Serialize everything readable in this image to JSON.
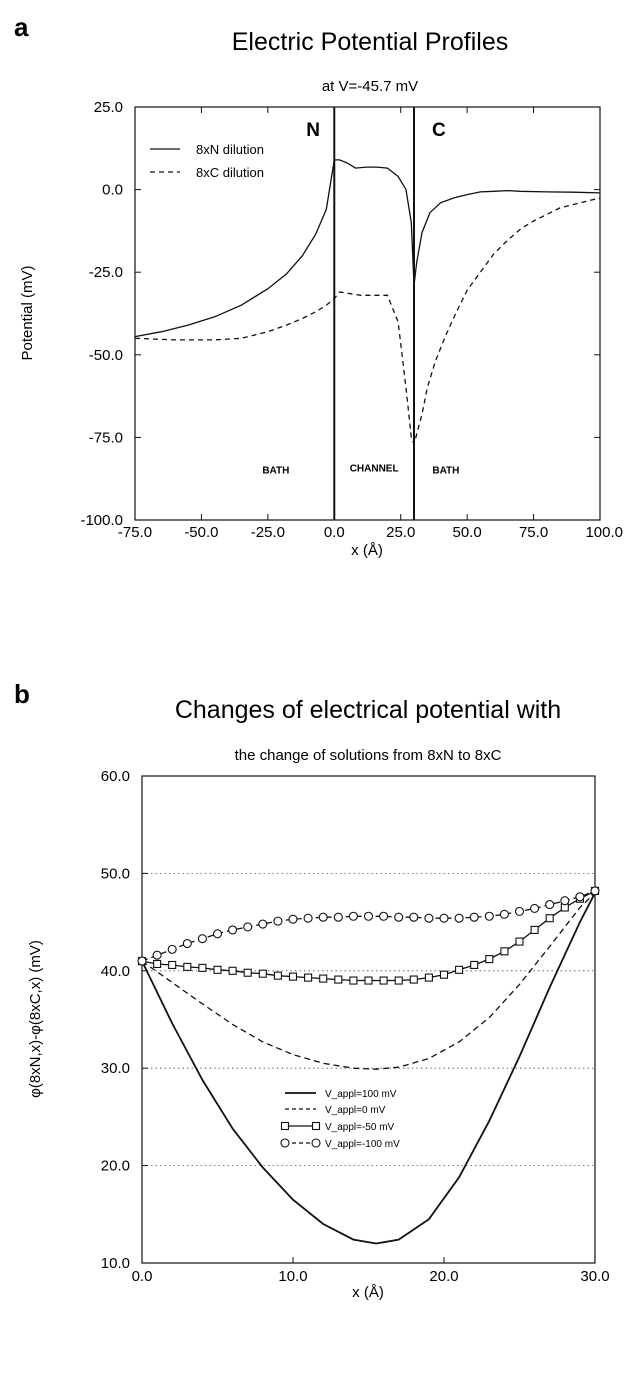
{
  "chart_data": [
    {
      "panel_label": "a",
      "type": "line",
      "title": "Electric Potential Profiles",
      "subtitle": "at V=-45.7 mV",
      "xlabel": "x (Å)",
      "ylabel": "Potential (mV)",
      "xlim": [
        -75,
        100
      ],
      "ylim": [
        -100,
        25
      ],
      "xticks": [
        "-75.0",
        "-50.0",
        "-25.0",
        "0.0",
        "25.0",
        "50.0",
        "75.0",
        "100.0"
      ],
      "yticks": [
        "25.0",
        "0.0",
        "-25.0",
        "-50.0",
        "-75.0",
        "-100.0"
      ],
      "legend_position": "top-left",
      "boundary_labels": [
        "N",
        "C"
      ],
      "region_labels": [
        "BATH",
        "CHANNEL",
        "BATH"
      ],
      "series": [
        {
          "name": "8xN dilution",
          "style": "solid",
          "x": [
            -75,
            -65,
            -55,
            -45,
            -35,
            -25,
            -18,
            -12,
            -7,
            -3,
            0,
            2,
            5,
            8,
            12,
            16,
            20,
            24,
            27,
            29,
            30,
            31,
            33,
            36,
            40,
            45,
            50,
            55,
            60,
            65,
            70,
            80,
            90,
            100
          ],
          "y": [
            -44.5,
            -43,
            -41,
            -38.5,
            -35,
            -30,
            -25.5,
            -20,
            -13.5,
            -6,
            9,
            9,
            8,
            6.5,
            6.8,
            6.8,
            6.5,
            4,
            0,
            -10,
            -29,
            -22,
            -13,
            -7,
            -4,
            -2.5,
            -1.5,
            -0.7,
            -0.5,
            -0.3,
            -0.5,
            -0.7,
            -0.8,
            -1
          ]
        },
        {
          "name": "8xC dilution",
          "style": "dashed",
          "x": [
            -75,
            -60,
            -45,
            -35,
            -25,
            -18,
            -12,
            -7,
            -3,
            0,
            2,
            6,
            10,
            16,
            20,
            24,
            27,
            29,
            30,
            31,
            33,
            35,
            38,
            42,
            46,
            50,
            55,
            60,
            65,
            70,
            75,
            80,
            85,
            90,
            95,
            100
          ],
          "y": [
            -45,
            -45.5,
            -45.5,
            -45,
            -43,
            -41,
            -39,
            -37,
            -35,
            -33,
            -31,
            -31.5,
            -32,
            -32,
            -32,
            -40,
            -60,
            -75,
            -77,
            -74,
            -68,
            -60,
            -52,
            -44,
            -37,
            -30.5,
            -25,
            -19.5,
            -15.5,
            -12,
            -9.5,
            -7.5,
            -5.5,
            -4.5,
            -3.5,
            -2.5
          ]
        }
      ]
    },
    {
      "panel_label": "b",
      "type": "line",
      "title": "Changes of electrical potential with",
      "subtitle": "the change of solutions from 8xN to 8xC",
      "xlabel": "x (Å)",
      "ylabel": "φ(8xN,x)-φ(8xC,x) (mV)",
      "xlim": [
        0,
        30
      ],
      "ylim": [
        10,
        60
      ],
      "xticks": [
        "0.0",
        "10.0",
        "20.0",
        "30.0"
      ],
      "yticks": [
        "60.0",
        "50.0",
        "40.0",
        "30.0",
        "20.0",
        "10.0"
      ],
      "grid": "horizontal dotted",
      "legend_position": "lower-center",
      "legend_labels": [
        "V_appl=100 mV",
        "V_appl=0 mV",
        "V_appl=-50 mV",
        "V_appl=-100 mV"
      ],
      "series": [
        {
          "name": "V_appl=100 mV",
          "style": "solid",
          "x": [
            0,
            2,
            4,
            6,
            8,
            10,
            12,
            14,
            15.5,
            17,
            19,
            21,
            23,
            25,
            27,
            29,
            30
          ],
          "y": [
            41,
            34.6,
            28.8,
            23.8,
            19.8,
            16.5,
            14,
            12.4,
            12,
            12.4,
            14.5,
            18.8,
            24.6,
            31.2,
            38.3,
            45,
            48
          ]
        },
        {
          "name": "V_appl=0 mV",
          "style": "dashed",
          "x": [
            0,
            2,
            4,
            6,
            8,
            10,
            12,
            14,
            15.5,
            17,
            19,
            21,
            23,
            25,
            27,
            29,
            30
          ],
          "y": [
            41,
            38.8,
            36.6,
            34.5,
            32.7,
            31.4,
            30.5,
            30,
            29.9,
            30.1,
            31,
            32.7,
            35.2,
            38.6,
            42.5,
            46.5,
            48
          ]
        },
        {
          "name": "V_appl=-50 mV",
          "style": "solid-square-markers",
          "x": [
            0,
            1,
            2,
            3,
            4,
            5,
            6,
            7,
            8,
            9,
            10,
            11,
            12,
            13,
            14,
            15,
            16,
            17,
            18,
            19,
            20,
            21,
            22,
            23,
            24,
            25,
            26,
            27,
            28,
            29,
            30
          ],
          "y": [
            41,
            40.7,
            40.6,
            40.4,
            40.3,
            40.1,
            40,
            39.8,
            39.7,
            39.5,
            39.4,
            39.3,
            39.2,
            39.1,
            39,
            39,
            39,
            39,
            39.1,
            39.3,
            39.6,
            40.1,
            40.6,
            41.2,
            42,
            43,
            44.2,
            45.4,
            46.5,
            47.4,
            48.2
          ]
        },
        {
          "name": "V_appl=-100 mV",
          "style": "dashed-circle-markers",
          "x": [
            0,
            1,
            2,
            3,
            4,
            5,
            6,
            7,
            8,
            9,
            10,
            11,
            12,
            13,
            14,
            15,
            16,
            17,
            18,
            19,
            20,
            21,
            22,
            23,
            24,
            25,
            26,
            27,
            28,
            29,
            30
          ],
          "y": [
            41,
            41.6,
            42.2,
            42.8,
            43.3,
            43.8,
            44.2,
            44.5,
            44.8,
            45.1,
            45.3,
            45.4,
            45.5,
            45.5,
            45.6,
            45.6,
            45.6,
            45.5,
            45.5,
            45.4,
            45.4,
            45.4,
            45.5,
            45.6,
            45.8,
            46.1,
            46.4,
            46.8,
            47.2,
            47.6,
            48.2
          ]
        }
      ]
    }
  ]
}
